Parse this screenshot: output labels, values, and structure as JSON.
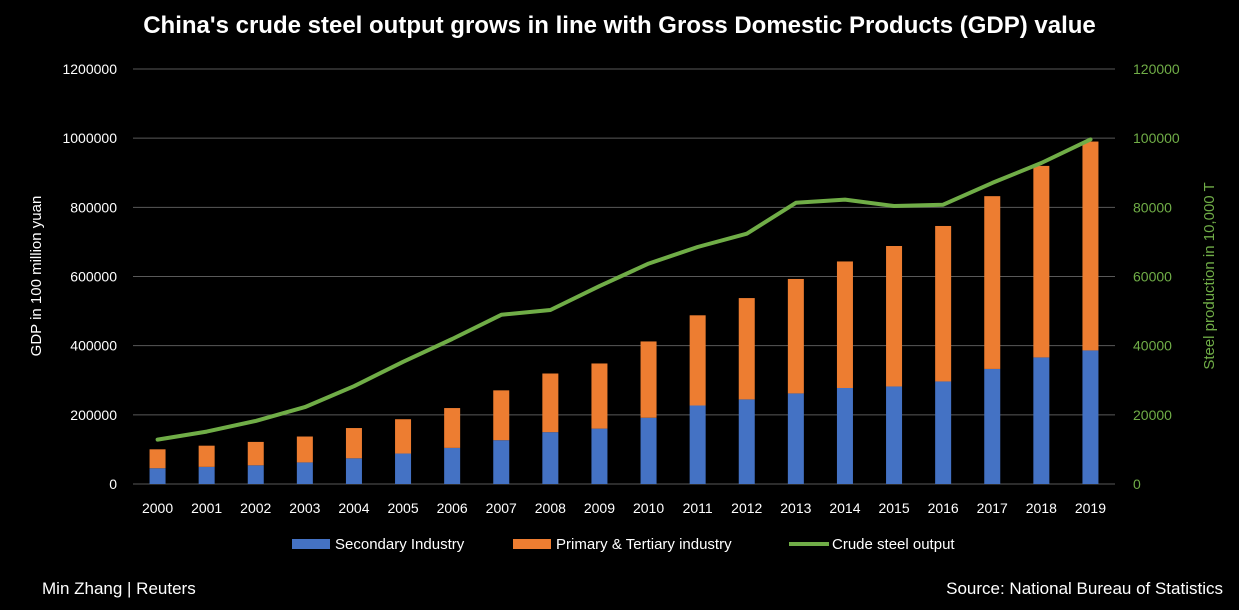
{
  "title": "China's crude steel output grows in line with Gross Domestic Products (GDP) value",
  "credit": "Min Zhang | Reuters",
  "source": "Source: National Bureau of Statistics",
  "colors": {
    "background": "#000000",
    "secondary": "#4472c4",
    "primary_tertiary": "#ed7d31",
    "steel": "#70ad47",
    "grid": "#595959"
  },
  "chart_data": {
    "type": "bar",
    "stacked": true,
    "title": "China's crude steel output grows in line with Gross Domestic Products (GDP) value",
    "categories": [
      "2000",
      "2001",
      "2002",
      "2003",
      "2004",
      "2005",
      "2006",
      "2007",
      "2008",
      "2009",
      "2010",
      "2011",
      "2012",
      "2013",
      "2014",
      "2015",
      "2016",
      "2017",
      "2018",
      "2019"
    ],
    "ylabel": "GDP in 100 million yuan",
    "ylabel_right": "Steel production in 10,000 T",
    "ylim": [
      0,
      1200000
    ],
    "ylim_right": [
      0,
      120000
    ],
    "yticks": [
      "0",
      "200000",
      "400000",
      "600000",
      "800000",
      "1000000",
      "1200000"
    ],
    "yticks_right": [
      "0",
      "20000",
      "40000",
      "60000",
      "80000",
      "100000",
      "120000"
    ],
    "grid": true,
    "legend_position": "bottom",
    "series": [
      {
        "name": "Secondary Industry",
        "kind": "bar",
        "axis": "left",
        "color": "#4472c4",
        "values": [
          45600,
          49500,
          54000,
          62400,
          74300,
          88100,
          104400,
          126600,
          149900,
          160200,
          191600,
          227000,
          244600,
          261900,
          277600,
          282000,
          296500,
          332700,
          366000,
          386200
        ]
      },
      {
        "name": "Primary & Tertiary industry",
        "kind": "bar",
        "axis": "left",
        "color": "#ed7d31",
        "values": [
          54700,
          61300,
          67700,
          74900,
          87500,
          99200,
          115200,
          144200,
          169600,
          188300,
          220600,
          260800,
          293000,
          331000,
          365900,
          406200,
          449600,
          499600,
          553800,
          604000
        ]
      },
      {
        "name": "Crude steel output",
        "kind": "line",
        "axis": "right",
        "color": "#70ad47",
        "values": [
          12850,
          15163,
          18237,
          22234,
          28291,
          35324,
          41915,
          48929,
          50306,
          57218,
          63723,
          68528,
          72388,
          81314,
          82231,
          80383,
          80761,
          87074,
          92826,
          99634
        ]
      }
    ]
  }
}
